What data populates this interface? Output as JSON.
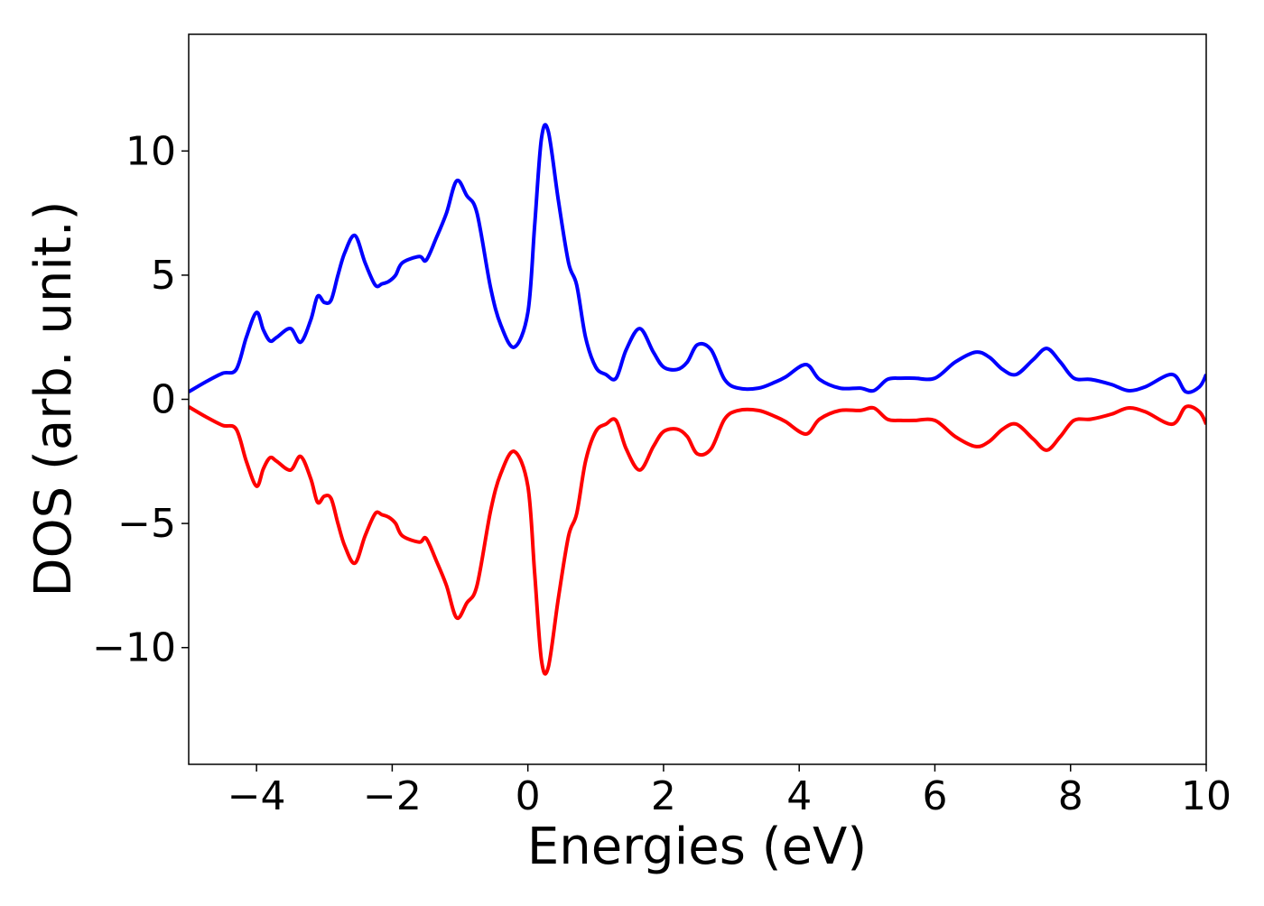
{
  "chart_data": {
    "type": "line",
    "xlabel": "Energies (eV)",
    "ylabel": "DOS (arb. unit.)",
    "xlim": [
      -5,
      10
    ],
    "ylim": [
      -14.7,
      14.7
    ],
    "xticks": [
      -4,
      -2,
      0,
      2,
      4,
      6,
      8,
      10
    ],
    "xtick_labels": [
      "−4",
      "−2",
      "0",
      "2",
      "4",
      "6",
      "8",
      "10"
    ],
    "yticks": [
      -10,
      -5,
      0,
      5,
      10
    ],
    "ytick_labels": [
      "−10",
      "−5",
      "0",
      "5",
      "10"
    ],
    "grid": false,
    "legend": "none",
    "x": [
      -5.0,
      -4.75,
      -4.5,
      -4.3,
      -4.15,
      -4.0,
      -3.9,
      -3.8,
      -3.7,
      -3.5,
      -3.35,
      -3.2,
      -3.1,
      -3.0,
      -2.9,
      -2.8,
      -2.7,
      -2.55,
      -2.4,
      -2.25,
      -2.15,
      -2.05,
      -1.95,
      -1.85,
      -1.6,
      -1.5,
      -1.35,
      -1.2,
      -1.05,
      -0.9,
      -0.75,
      -0.55,
      -0.4,
      -0.2,
      0.0,
      0.1,
      0.2,
      0.3,
      0.45,
      0.6,
      0.72,
      0.85,
      1.0,
      1.15,
      1.3,
      1.45,
      1.65,
      1.85,
      2.0,
      2.2,
      2.35,
      2.5,
      2.7,
      2.9,
      3.1,
      3.4,
      3.65,
      3.8,
      4.1,
      4.3,
      4.6,
      4.9,
      5.1,
      5.3,
      5.5,
      5.7,
      6.0,
      6.3,
      6.6,
      6.8,
      7.0,
      7.2,
      7.45,
      7.65,
      7.85,
      8.05,
      8.3,
      8.6,
      8.85,
      9.1,
      9.5,
      9.7,
      9.9,
      10.0
    ],
    "series": [
      {
        "color": "#0000ff",
        "values": [
          0.3,
          0.7,
          1.05,
          1.2,
          2.5,
          3.5,
          2.8,
          2.35,
          2.5,
          2.85,
          2.3,
          3.2,
          4.15,
          3.9,
          4.0,
          5.0,
          5.9,
          6.6,
          5.5,
          4.6,
          4.65,
          4.75,
          5.0,
          5.5,
          5.75,
          5.6,
          6.5,
          7.5,
          8.8,
          8.2,
          7.5,
          4.5,
          3.0,
          2.1,
          3.5,
          7.0,
          10.5,
          10.8,
          8.0,
          5.5,
          4.6,
          2.5,
          1.3,
          1.0,
          0.85,
          2.0,
          2.85,
          1.9,
          1.3,
          1.2,
          1.5,
          2.2,
          2.0,
          0.8,
          0.45,
          0.45,
          0.7,
          0.9,
          1.4,
          0.8,
          0.45,
          0.45,
          0.35,
          0.8,
          0.85,
          0.85,
          0.85,
          1.5,
          1.9,
          1.7,
          1.2,
          1.0,
          1.6,
          2.05,
          1.5,
          0.85,
          0.8,
          0.6,
          0.35,
          0.5,
          1.0,
          0.3,
          0.5,
          1.0
        ]
      },
      {
        "color": "#ff0000",
        "values": [
          -0.3,
          -0.7,
          -1.05,
          -1.2,
          -2.5,
          -3.5,
          -2.8,
          -2.35,
          -2.5,
          -2.85,
          -2.3,
          -3.2,
          -4.15,
          -3.9,
          -4.0,
          -5.0,
          -5.9,
          -6.6,
          -5.5,
          -4.6,
          -4.65,
          -4.75,
          -5.0,
          -5.5,
          -5.75,
          -5.6,
          -6.5,
          -7.5,
          -8.8,
          -8.2,
          -7.5,
          -4.5,
          -3.0,
          -2.1,
          -3.5,
          -7.0,
          -10.5,
          -10.8,
          -8.0,
          -5.5,
          -4.6,
          -2.5,
          -1.3,
          -1.0,
          -0.85,
          -2.0,
          -2.85,
          -1.9,
          -1.3,
          -1.2,
          -1.5,
          -2.2,
          -2.0,
          -0.8,
          -0.45,
          -0.45,
          -0.7,
          -0.9,
          -1.4,
          -0.8,
          -0.45,
          -0.45,
          -0.35,
          -0.8,
          -0.85,
          -0.85,
          -0.85,
          -1.5,
          -1.9,
          -1.7,
          -1.2,
          -1.0,
          -1.6,
          -2.05,
          -1.5,
          -0.85,
          -0.8,
          -0.6,
          -0.35,
          -0.5,
          -1.0,
          -0.3,
          -0.5,
          -1.0
        ]
      }
    ]
  }
}
